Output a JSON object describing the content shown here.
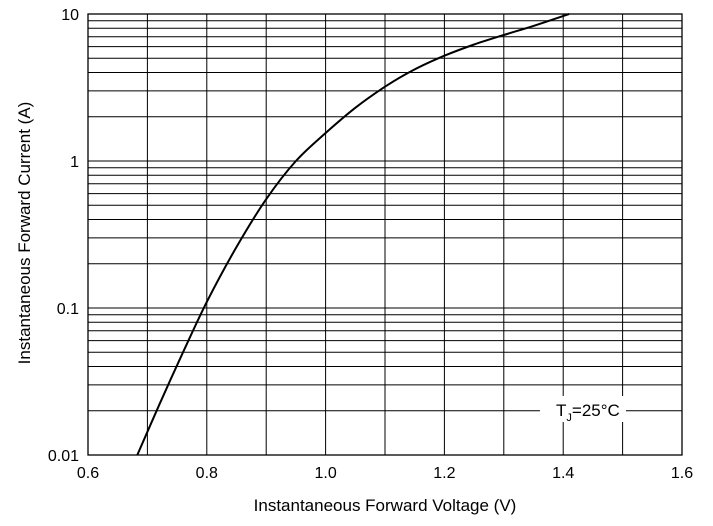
{
  "chart_data": {
    "type": "line",
    "xlabel": "Instantaneous Forward Voltage (V)",
    "ylabel": "Instantaneous Forward Current (A)",
    "xlim": [
      0.6,
      1.6
    ],
    "ylim": [
      0.01,
      10
    ],
    "yscale": "log",
    "grid": true,
    "x_ticks": [
      "0.6",
      "0.8",
      "1.0",
      "1.2",
      "1.4",
      "1.6"
    ],
    "y_ticks": [
      "0.01",
      "0.1",
      "1",
      "10"
    ],
    "annotation": {
      "main": "T",
      "sub": "J",
      "rest": "=25°C"
    },
    "series": [
      {
        "x": [
          0.683,
          0.72,
          0.76,
          0.8,
          0.85,
          0.9,
          0.95,
          1.0,
          1.05,
          1.1,
          1.15,
          1.2,
          1.25,
          1.3,
          1.35,
          1.41
        ],
        "y": [
          0.01,
          0.022,
          0.05,
          0.11,
          0.26,
          0.55,
          1.0,
          1.55,
          2.3,
          3.2,
          4.2,
          5.2,
          6.2,
          7.2,
          8.3,
          10.0
        ]
      }
    ],
    "colors": {
      "line": "#000000",
      "grid": "#000000"
    }
  }
}
